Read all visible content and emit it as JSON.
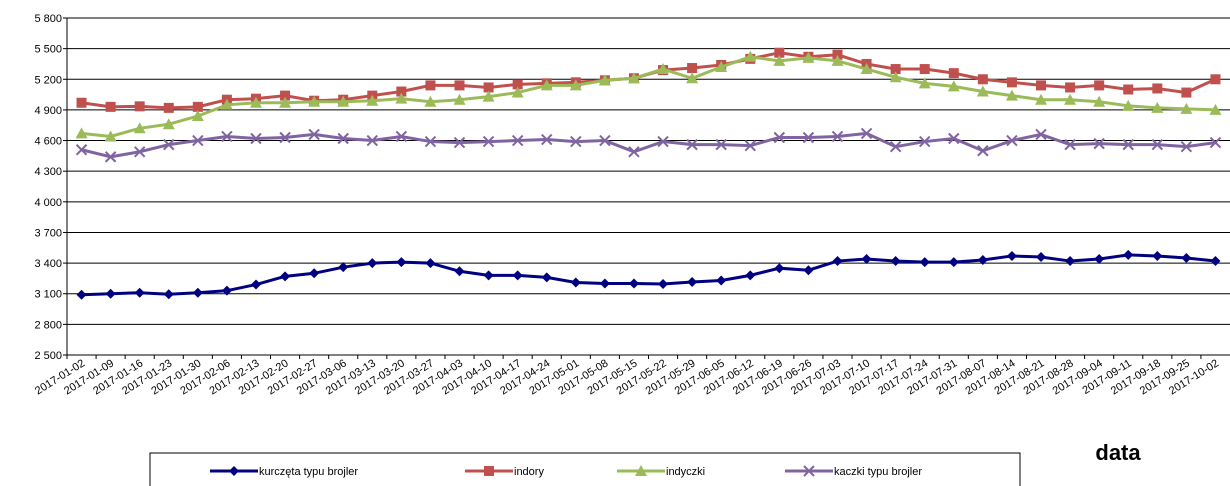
{
  "chart_data": {
    "type": "line",
    "x_label": "data",
    "categories": [
      "2017-01-02",
      "2017-01-09",
      "2017-01-16",
      "2017-01-23",
      "2017-01-30",
      "2017-02-06",
      "2017-02-13",
      "2017-02-20",
      "2017-02-27",
      "2017-03-06",
      "2017-03-13",
      "2017-03-20",
      "2017-03-27",
      "2017-04-03",
      "2017-04-10",
      "2017-04-17",
      "2017-04-24",
      "2017-05-01",
      "2017-05-08",
      "2017-05-15",
      "2017-05-22",
      "2017-05-29",
      "2017-06-05",
      "2017-06-12",
      "2017-06-19",
      "2017-06-26",
      "2017-07-03",
      "2017-07-10",
      "2017-07-17",
      "2017-07-24",
      "2017-07-31",
      "2017-08-07",
      "2017-08-14",
      "2017-08-21",
      "2017-08-28",
      "2017-09-04",
      "2017-09-11",
      "2017-09-18",
      "2017-09-25",
      "2017-10-02"
    ],
    "series": [
      {
        "name": "kurczęta typu brojler",
        "color": "#000080",
        "marker": "diamond",
        "values": [
          3090,
          3100,
          3110,
          3095,
          3110,
          3130,
          3190,
          3270,
          3300,
          3360,
          3400,
          3410,
          3400,
          3320,
          3280,
          3280,
          3260,
          3210,
          3200,
          3200,
          3195,
          3215,
          3230,
          3280,
          3350,
          3330,
          3420,
          3440,
          3420,
          3410,
          3410,
          3430,
          3470,
          3460,
          3420,
          3440,
          3480,
          3470,
          3450,
          3420
        ]
      },
      {
        "name": "indory",
        "color": "#c0504d",
        "marker": "square",
        "values": [
          4970,
          4930,
          4935,
          4920,
          4930,
          5000,
          5010,
          5040,
          4990,
          5000,
          5040,
          5080,
          5140,
          5140,
          5120,
          5150,
          5160,
          5170,
          5190,
          5210,
          5290,
          5310,
          5340,
          5400,
          5460,
          5420,
          5440,
          5350,
          5300,
          5300,
          5260,
          5200,
          5170,
          5140,
          5120,
          5140,
          5100,
          5110,
          5070,
          5200
        ]
      },
      {
        "name": "indyczki",
        "color": "#9bbb59",
        "marker": "triangle",
        "values": [
          4670,
          4640,
          4720,
          4760,
          4840,
          4950,
          4970,
          4970,
          4980,
          4980,
          4990,
          5010,
          4980,
          5000,
          5030,
          5070,
          5140,
          5140,
          5190,
          5210,
          5300,
          5210,
          5320,
          5420,
          5380,
          5410,
          5380,
          5300,
          5220,
          5160,
          5130,
          5080,
          5040,
          5000,
          5000,
          4980,
          4940,
          4920,
          4910,
          4900
        ]
      },
      {
        "name": "kaczki typu brojler",
        "color": "#8064a2",
        "marker": "cross",
        "values": [
          4510,
          4440,
          4490,
          4560,
          4600,
          4640,
          4620,
          4630,
          4660,
          4620,
          4600,
          4640,
          4590,
          4580,
          4590,
          4600,
          4610,
          4590,
          4600,
          4490,
          4590,
          4560,
          4560,
          4550,
          4630,
          4630,
          4640,
          4670,
          4540,
          4590,
          4620,
          4500,
          4600,
          4660,
          4560,
          4570,
          4560,
          4560,
          4540,
          4580
        ]
      }
    ],
    "ylim": [
      2500,
      5800
    ],
    "yticks": [
      {
        "value": 2500,
        "label": "2 500"
      },
      {
        "value": 2800,
        "label": "2 800"
      },
      {
        "value": 3100,
        "label": "3 100"
      },
      {
        "value": 3400,
        "label": "3 400"
      },
      {
        "value": 3700,
        "label": "3 700"
      },
      {
        "value": 4000,
        "label": "4 000"
      },
      {
        "value": 4300,
        "label": "4 300"
      },
      {
        "value": 4600,
        "label": "4 600"
      },
      {
        "value": 4900,
        "label": "4 900"
      },
      {
        "value": 5200,
        "label": "5 200"
      },
      {
        "value": 5500,
        "label": "5 500"
      },
      {
        "value": 5800,
        "label": "5 800"
      }
    ],
    "grid": true
  }
}
